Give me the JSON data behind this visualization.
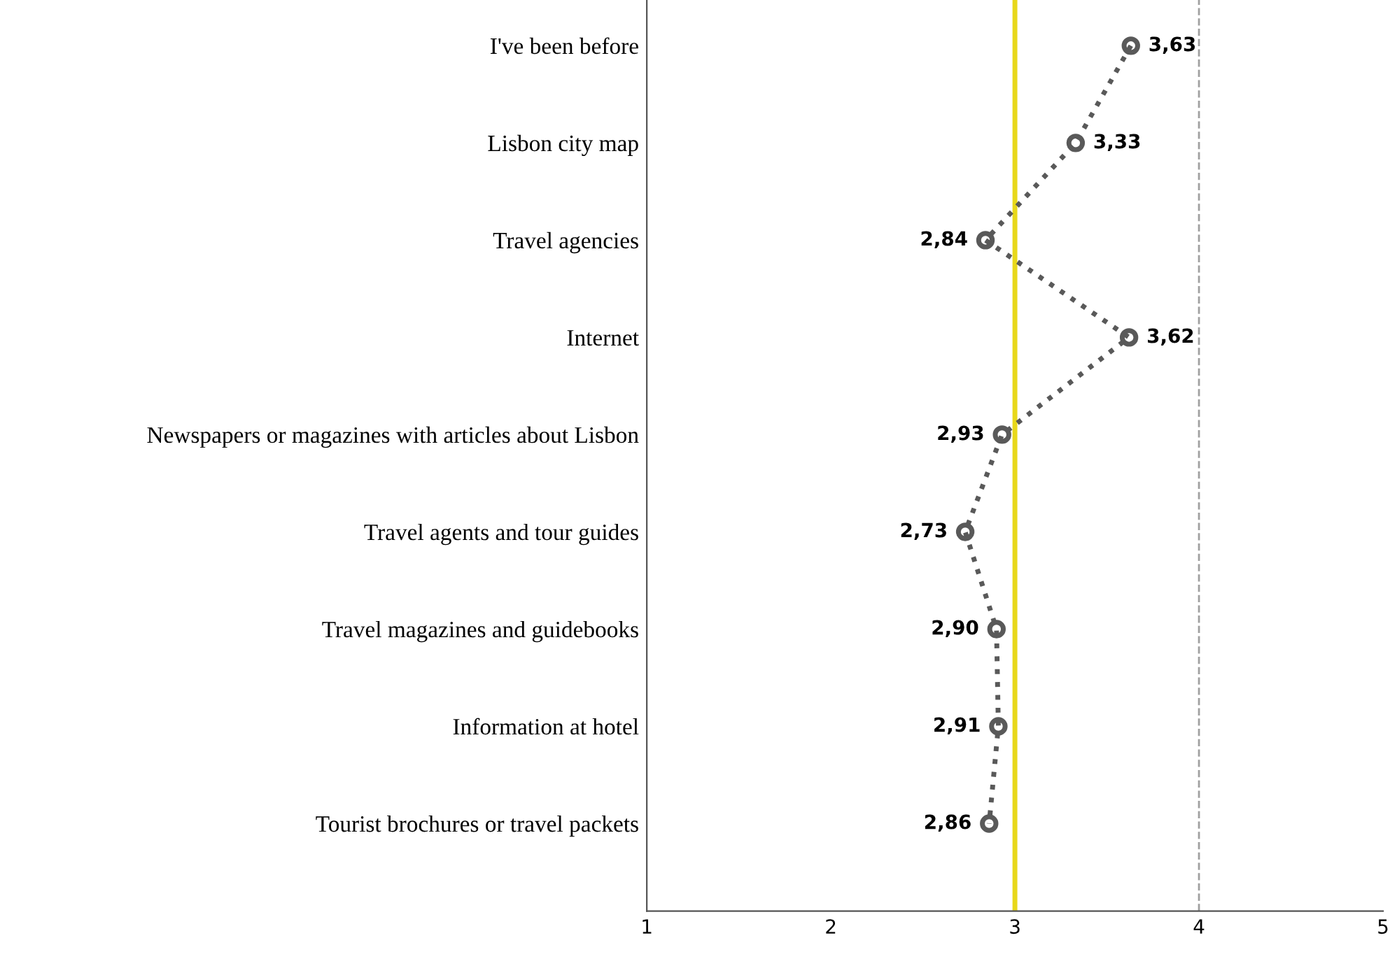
{
  "chart_data": {
    "type": "line",
    "orientation": "horizontal",
    "categories": [
      "I've been before",
      "Lisbon city map",
      "Travel agencies",
      "Internet",
      "Newspapers or magazines with articles about Lisbon",
      "Travel agents and tour guides",
      "Travel magazines and guidebooks",
      "Information at hotel",
      "Tourist brochures or travel packets"
    ],
    "series": [
      {
        "color": "#595959",
        "values": [
          3.63,
          3.33,
          2.84,
          3.62,
          2.93,
          2.73,
          2.9,
          2.91,
          2.86
        ],
        "value_labels": [
          "3,63",
          "3,33",
          "2,84",
          "3,62",
          "2,93",
          "2,73",
          "2,90",
          "2,91",
          "2,86"
        ]
      }
    ],
    "xlim": [
      1,
      5
    ],
    "xticks": [
      1,
      2,
      3,
      4,
      5
    ],
    "ref_lines": [
      {
        "axis": "x",
        "value": 3,
        "color": "#e8d81a",
        "line_style": "solid"
      },
      {
        "axis": "x",
        "value": 4,
        "color": "#a0a0a0",
        "line_style": "dashed"
      }
    ],
    "marker": "circle",
    "line_style": "dotted",
    "grid": false,
    "legend": false
  }
}
